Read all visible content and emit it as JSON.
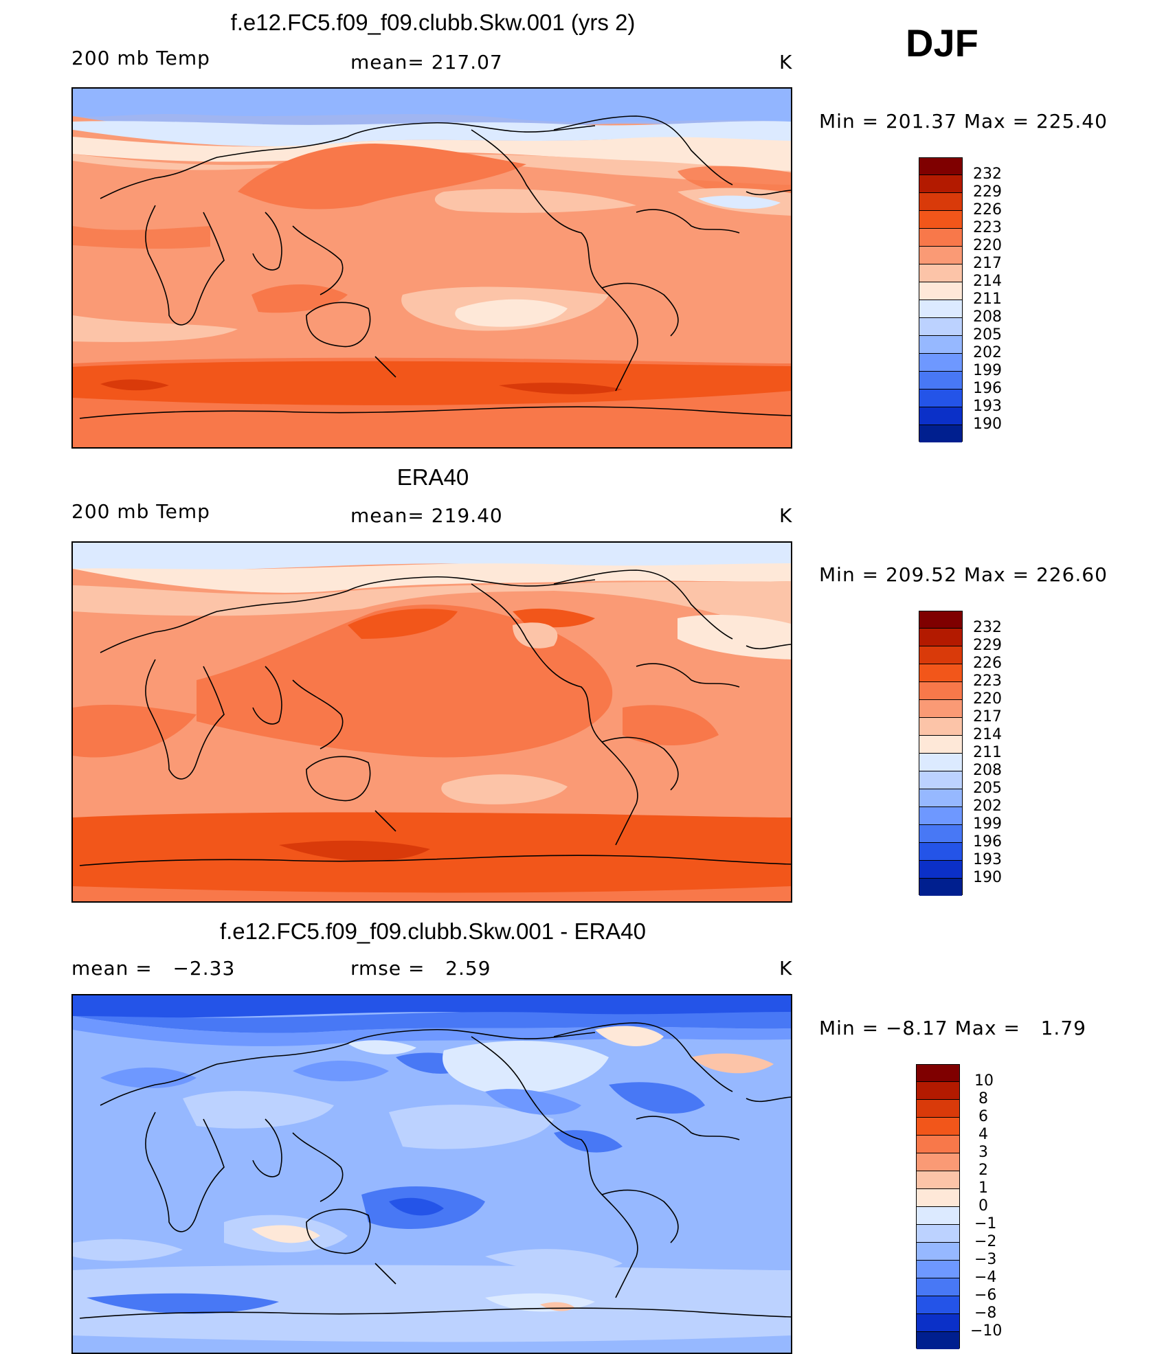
{
  "season": "DJF",
  "panels": [
    {
      "id": "model",
      "title": "f.e12.FC5.f09_f09.clubb.Skw.001 (yrs 2)",
      "left_label": "200 mb Temp",
      "center_label": "mean= 217.07",
      "units": "K",
      "minmax": "Min = 201.37 Max = 225.40",
      "levels": [
        "232",
        "229",
        "226",
        "223",
        "220",
        "217",
        "214",
        "211",
        "208",
        "205",
        "202",
        "199",
        "196",
        "193",
        "190"
      ]
    },
    {
      "id": "obs",
      "title": "ERA40",
      "left_label": "200 mb Temp",
      "center_label": "mean= 219.40",
      "units": "K",
      "minmax": "Min = 209.52 Max = 226.60",
      "levels": [
        "232",
        "229",
        "226",
        "223",
        "220",
        "217",
        "214",
        "211",
        "208",
        "205",
        "202",
        "199",
        "196",
        "193",
        "190"
      ]
    },
    {
      "id": "diff",
      "title": "f.e12.FC5.f09_f09.clubb.Skw.001 - ERA40",
      "left_label": "mean =   −2.33",
      "center_label": "rmse =   2.59",
      "units": "K",
      "minmax": "Min = −8.17 Max =   1.79",
      "levels": [
        "10",
        "8",
        "6",
        "4",
        "3",
        "2",
        "1",
        "0",
        "−1",
        "−2",
        "−3",
        "−4",
        "−6",
        "−8",
        "−10"
      ]
    }
  ],
  "colors": {
    "colorbar": [
      "#7f0000",
      "#b31a00",
      "#d93a0a",
      "#f2561a",
      "#f8784a",
      "#fa9a75",
      "#fcc4a8",
      "#fee8d8",
      "#dceaff",
      "#bcd2ff",
      "#96b8ff",
      "#6e98ff",
      "#4878f5",
      "#2454e8",
      "#0b30c8",
      "#001f8f"
    ],
    "continent_line": "#000000"
  },
  "legend_colors": {
    "abs": [
      "#7f0000",
      "#b31a00",
      "#d93a0a",
      "#f2561a",
      "#f8784a",
      "#fa9a75",
      "#fcc4a8",
      "#fee8d8",
      "#dceaff",
      "#bcd2ff",
      "#96b8ff",
      "#6e98ff",
      "#4878f5",
      "#2454e8",
      "#0b30c8",
      "#001f8f"
    ]
  }
}
